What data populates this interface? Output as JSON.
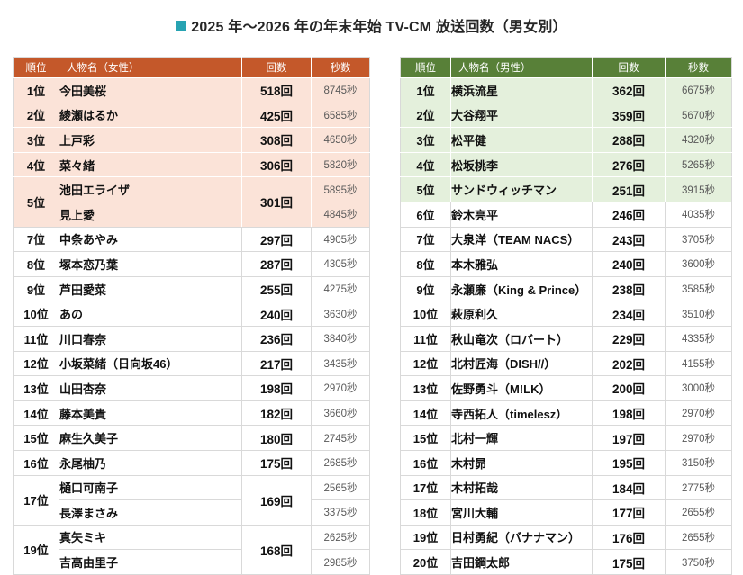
{
  "title": {
    "text": "2025 年～2026 年の年末年始 TV-CM 放送回数（男女別）"
  },
  "colors": {
    "title_bullet": "#27A3B2",
    "title_text": "#262626",
    "women_header_bg": "#C4582A",
    "women_highlight_bg": "#FBE3D8",
    "men_header_bg": "#588038",
    "men_highlight_bg": "#E4F0DC",
    "border": "#D9D9D9",
    "seconds_text": "#595959"
  },
  "chart_data": [
    {
      "type": "table",
      "headers": [
        "順位",
        "人物名（女性）",
        "回数",
        "秒数"
      ],
      "rows": [
        {
          "rank": "1位",
          "count": "518回",
          "highlight": true,
          "entries": [
            {
              "name": "今田美桜",
              "seconds": "8745秒"
            }
          ]
        },
        {
          "rank": "2位",
          "count": "425回",
          "highlight": true,
          "entries": [
            {
              "name": "綾瀬はるか",
              "seconds": "6585秒"
            }
          ]
        },
        {
          "rank": "3位",
          "count": "308回",
          "highlight": true,
          "entries": [
            {
              "name": "上戸彩",
              "seconds": "4650秒"
            }
          ]
        },
        {
          "rank": "4位",
          "count": "306回",
          "highlight": true,
          "entries": [
            {
              "name": "菜々緒",
              "seconds": "5820秒"
            }
          ]
        },
        {
          "rank": "5位",
          "count": "301回",
          "highlight": true,
          "entries": [
            {
              "name": "池田エライザ",
              "seconds": "5895秒"
            },
            {
              "name": "見上愛",
              "seconds": "4845秒"
            }
          ]
        },
        {
          "rank": "7位",
          "count": "297回",
          "highlight": false,
          "entries": [
            {
              "name": "中条あやみ",
              "seconds": "4905秒"
            }
          ]
        },
        {
          "rank": "8位",
          "count": "287回",
          "highlight": false,
          "entries": [
            {
              "name": "塚本恋乃葉",
              "seconds": "4305秒"
            }
          ]
        },
        {
          "rank": "9位",
          "count": "255回",
          "highlight": false,
          "entries": [
            {
              "name": "芦田愛菜",
              "seconds": "4275秒"
            }
          ]
        },
        {
          "rank": "10位",
          "count": "240回",
          "highlight": false,
          "entries": [
            {
              "name": "あの",
              "seconds": "3630秒"
            }
          ]
        },
        {
          "rank": "11位",
          "count": "236回",
          "highlight": false,
          "entries": [
            {
              "name": "川口春奈",
              "seconds": "3840秒"
            }
          ]
        },
        {
          "rank": "12位",
          "count": "217回",
          "highlight": false,
          "entries": [
            {
              "name": "小坂菜緒（日向坂46）",
              "seconds": "3435秒"
            }
          ]
        },
        {
          "rank": "13位",
          "count": "198回",
          "highlight": false,
          "entries": [
            {
              "name": "山田杏奈",
              "seconds": "2970秒"
            }
          ]
        },
        {
          "rank": "14位",
          "count": "182回",
          "highlight": false,
          "entries": [
            {
              "name": "藤本美貴",
              "seconds": "3660秒"
            }
          ]
        },
        {
          "rank": "15位",
          "count": "180回",
          "highlight": false,
          "entries": [
            {
              "name": "麻生久美子",
              "seconds": "2745秒"
            }
          ]
        },
        {
          "rank": "16位",
          "count": "175回",
          "highlight": false,
          "entries": [
            {
              "name": "永尾柚乃",
              "seconds": "2685秒"
            }
          ]
        },
        {
          "rank": "17位",
          "count": "169回",
          "highlight": false,
          "entries": [
            {
              "name": "樋口可南子",
              "seconds": "2565秒"
            },
            {
              "name": "長澤まさみ",
              "seconds": "3375秒"
            }
          ]
        },
        {
          "rank": "19位",
          "count": "168回",
          "highlight": false,
          "entries": [
            {
              "name": "真矢ミキ",
              "seconds": "2625秒"
            },
            {
              "name": "吉高由里子",
              "seconds": "2985秒"
            }
          ]
        }
      ]
    },
    {
      "type": "table",
      "headers": [
        "順位",
        "人物名（男性）",
        "回数",
        "秒数"
      ],
      "rows": [
        {
          "rank": "1位",
          "count": "362回",
          "highlight": true,
          "entries": [
            {
              "name": "横浜流星",
              "seconds": "6675秒"
            }
          ]
        },
        {
          "rank": "2位",
          "count": "359回",
          "highlight": true,
          "entries": [
            {
              "name": "大谷翔平",
              "seconds": "5670秒"
            }
          ]
        },
        {
          "rank": "3位",
          "count": "288回",
          "highlight": true,
          "entries": [
            {
              "name": "松平健",
              "seconds": "4320秒"
            }
          ]
        },
        {
          "rank": "4位",
          "count": "276回",
          "highlight": true,
          "entries": [
            {
              "name": "松坂桃李",
              "seconds": "5265秒"
            }
          ]
        },
        {
          "rank": "5位",
          "count": "251回",
          "highlight": true,
          "entries": [
            {
              "name": "サンドウィッチマン",
              "seconds": "3915秒"
            }
          ]
        },
        {
          "rank": "6位",
          "count": "246回",
          "highlight": false,
          "entries": [
            {
              "name": "鈴木亮平",
              "seconds": "4035秒"
            }
          ]
        },
        {
          "rank": "7位",
          "count": "243回",
          "highlight": false,
          "entries": [
            {
              "name": "大泉洋（TEAM NACS）",
              "seconds": "3705秒"
            }
          ]
        },
        {
          "rank": "8位",
          "count": "240回",
          "highlight": false,
          "entries": [
            {
              "name": "本木雅弘",
              "seconds": "3600秒"
            }
          ]
        },
        {
          "rank": "9位",
          "count": "238回",
          "highlight": false,
          "entries": [
            {
              "name": "永瀬廉（King & Prince）",
              "seconds": "3585秒"
            }
          ]
        },
        {
          "rank": "10位",
          "count": "234回",
          "highlight": false,
          "entries": [
            {
              "name": "萩原利久",
              "seconds": "3510秒"
            }
          ]
        },
        {
          "rank": "11位",
          "count": "229回",
          "highlight": false,
          "entries": [
            {
              "name": "秋山竜次（ロバート）",
              "seconds": "4335秒"
            }
          ]
        },
        {
          "rank": "12位",
          "count": "202回",
          "highlight": false,
          "entries": [
            {
              "name": "北村匠海（DISH//）",
              "seconds": "4155秒"
            }
          ]
        },
        {
          "rank": "13位",
          "count": "200回",
          "highlight": false,
          "entries": [
            {
              "name": "佐野勇斗（M!LK）",
              "seconds": "3000秒"
            }
          ]
        },
        {
          "rank": "14位",
          "count": "198回",
          "highlight": false,
          "entries": [
            {
              "name": "寺西拓人（timelesz）",
              "seconds": "2970秒"
            }
          ]
        },
        {
          "rank": "15位",
          "count": "197回",
          "highlight": false,
          "entries": [
            {
              "name": "北村一輝",
              "seconds": "2970秒"
            }
          ]
        },
        {
          "rank": "16位",
          "count": "195回",
          "highlight": false,
          "entries": [
            {
              "name": "木村昴",
              "seconds": "3150秒"
            }
          ]
        },
        {
          "rank": "17位",
          "count": "184回",
          "highlight": false,
          "entries": [
            {
              "name": "木村拓哉",
              "seconds": "2775秒"
            }
          ]
        },
        {
          "rank": "18位",
          "count": "177回",
          "highlight": false,
          "entries": [
            {
              "name": "宮川大輔",
              "seconds": "2655秒"
            }
          ]
        },
        {
          "rank": "19位",
          "count": "176回",
          "highlight": false,
          "entries": [
            {
              "name": "日村勇紀（バナナマン）",
              "seconds": "2655秒"
            }
          ]
        },
        {
          "rank": "20位",
          "count": "175回",
          "highlight": false,
          "entries": [
            {
              "name": "吉田鋼太郎",
              "seconds": "3750秒"
            }
          ]
        }
      ]
    }
  ]
}
